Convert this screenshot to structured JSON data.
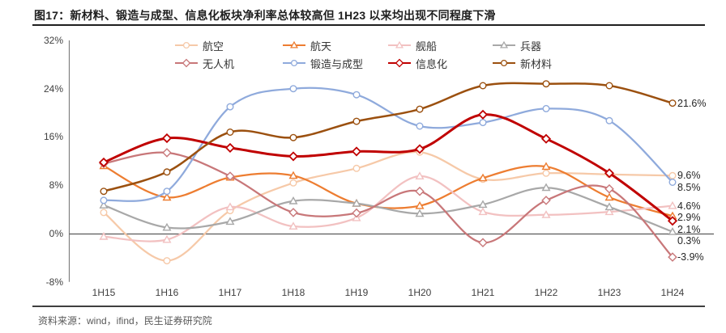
{
  "header": {
    "title": "图17：新材料、锻造与成型、信息化板块净利率总体较高但 1H23 以来均出现不同程度下滑"
  },
  "footer": {
    "source": "资料来源：wind，ifind，民生证券研究院"
  },
  "colors": {
    "title_text": "#1f1f1f",
    "tick_text": "#3f3f3f",
    "source_text": "#595959",
    "axis_line": "#808080",
    "zero_line": "#595959"
  },
  "chart_data": {
    "type": "line",
    "title": "",
    "xlabel": "",
    "ylabel": "",
    "x": [
      "1H15",
      "1H16",
      "1H17",
      "1H18",
      "1H19",
      "1H20",
      "1H21",
      "1H22",
      "1H23",
      "1H24"
    ],
    "ylim": [
      -8,
      32
    ],
    "yticks": [
      32,
      24,
      16,
      8,
      0,
      -8
    ],
    "ytick_suffix": "%",
    "grid": false,
    "smooth": true,
    "legend_position": "top",
    "legend_rows": [
      [
        "航空",
        "航天",
        "舰船",
        "兵器"
      ],
      [
        "无人机",
        "锻造与成型",
        "信息化",
        "新材料"
      ]
    ],
    "series": [
      {
        "key": "aviation",
        "name": "航空",
        "color": "#F6C9A8",
        "marker": "circle",
        "line_width": 2.25,
        "values": [
          3.5,
          -4.5,
          3.8,
          8.4,
          10.8,
          13.5,
          9.0,
          10.0,
          9.8,
          9.6
        ],
        "end_label": "9.6%"
      },
      {
        "key": "aerospace",
        "name": "航天",
        "color": "#ED7D31",
        "marker": "triangle",
        "line_width": 2.25,
        "values": [
          11.2,
          6.0,
          9.3,
          9.6,
          5.0,
          4.6,
          9.2,
          11.1,
          6.0,
          2.9
        ],
        "end_label": "2.9%"
      },
      {
        "key": "ships",
        "name": "舰船",
        "color": "#F2C1C1",
        "marker": "triangle",
        "line_width": 2.25,
        "values": [
          -0.5,
          -1.0,
          4.4,
          1.2,
          2.6,
          9.5,
          3.6,
          3.1,
          3.6,
          4.6
        ],
        "end_label": "4.6%"
      },
      {
        "key": "ordnance",
        "name": "兵器",
        "color": "#A8A8A8",
        "marker": "triangle",
        "line_width": 2.25,
        "values": [
          4.7,
          1.0,
          2.0,
          5.4,
          5.0,
          3.3,
          4.8,
          7.6,
          4.4,
          0.3
        ],
        "end_label": "0.3%"
      },
      {
        "key": "uav",
        "name": "无人机",
        "color": "#C87779",
        "marker": "diamond",
        "line_width": 2.25,
        "values": [
          11.6,
          13.4,
          9.5,
          3.5,
          3.4,
          7.0,
          -1.5,
          5.5,
          7.4,
          -3.9
        ],
        "end_label": "-3.9%"
      },
      {
        "key": "forging-forming",
        "name": "锻造与成型",
        "color": "#8FAADC",
        "marker": "circle",
        "line_width": 2.25,
        "values": [
          5.5,
          7.0,
          21.0,
          24.0,
          23.0,
          17.8,
          18.4,
          20.7,
          18.7,
          8.5
        ],
        "end_label": "8.5%"
      },
      {
        "key": "informatization",
        "name": "信息化",
        "color": "#C00000",
        "marker": "diamond",
        "line_width": 3,
        "values": [
          11.8,
          15.8,
          14.2,
          12.8,
          13.6,
          14.0,
          19.7,
          15.7,
          10.0,
          2.1
        ],
        "end_label": "2.1%"
      },
      {
        "key": "new-materials",
        "name": "新材料",
        "color": "#9B500F",
        "marker": "circle",
        "line_width": 2.5,
        "values": [
          7.0,
          10.2,
          16.8,
          15.9,
          18.6,
          20.6,
          24.5,
          24.8,
          24.5,
          21.6
        ],
        "end_label": "21.6%"
      }
    ]
  }
}
